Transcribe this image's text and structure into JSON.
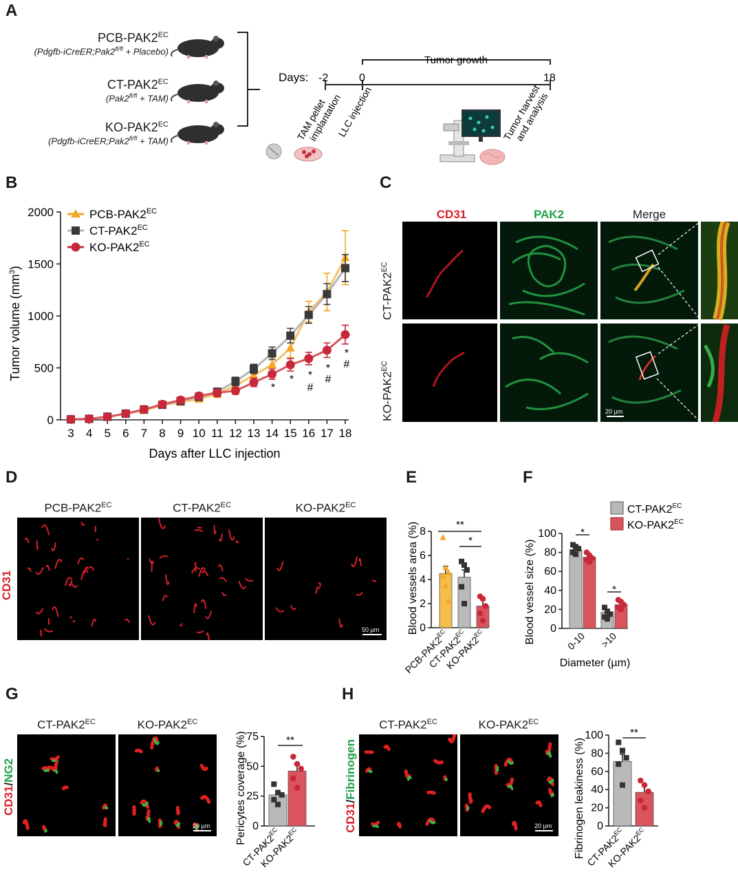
{
  "panels": {
    "A": {
      "letter": "A",
      "groups": [
        {
          "name": "PCB-PAK2",
          "sup": "EC",
          "genotype": "(Pdgfb-iCreER;Pak2",
          "gsup": "fl/fl",
          "gtail": " + Placebo)"
        },
        {
          "name": "CT-PAK2",
          "sup": "EC",
          "genotype": "(Pak2",
          "gsup": "fl/fl",
          "gtail": " + TAM)"
        },
        {
          "name": "KO-PAK2",
          "sup": "EC",
          "genotype": "(Pdgfb-iCreER;Pak2",
          "gsup": "fl/fl",
          "gtail": " + TAM)"
        }
      ],
      "timeline": {
        "days_label": "Days:",
        "ticks": [
          "-2",
          "0",
          "18"
        ],
        "bracket_label": "Tumor growth",
        "events": [
          "TAM pellet",
          "implantation",
          "LLC injection",
          "Tumor harvest",
          "and analysis"
        ]
      }
    },
    "B": {
      "letter": "B",
      "ylabel": "Tumor volume (mm",
      "ylabel_sup": "3",
      "ylabel_tail": ")",
      "xlabel": "Days after LLC injection",
      "legend": [
        {
          "name": "PCB-PAK2",
          "sup": "EC",
          "color": "#f5a623"
        },
        {
          "name": "CT-PAK2",
          "sup": "EC",
          "color": "#3a3a3a"
        },
        {
          "name": "KO-PAK2",
          "sup": "EC",
          "color": "#c8283a"
        }
      ],
      "stars": [
        "*",
        "*",
        "*",
        "*",
        "*"
      ],
      "hashes": [
        "#",
        "#",
        "#"
      ]
    },
    "C": {
      "letter": "C",
      "columns": [
        "CD31",
        "PAK2",
        "Merge"
      ],
      "rows": [
        "CT-PAK2",
        "KO-PAK2"
      ],
      "row_sup": "EC",
      "scale": "20 µm"
    },
    "D": {
      "letter": "D",
      "columns": [
        "PCB-PAK2",
        "CT-PAK2",
        "KO-PAK2"
      ],
      "col_sup": "EC",
      "side_label": "CD31",
      "scale": "50 µm"
    },
    "E": {
      "letter": "E",
      "ylabel": "Blood vessels area (%)",
      "categories": [
        "PCB-PAK2",
        "CT-PAK2",
        "KO-PAK2"
      ],
      "cat_sup": "EC",
      "sig": [
        "**",
        "*"
      ]
    },
    "F": {
      "letter": "F",
      "ylabel": "Blood vessel size (%)",
      "xlabel": "Diameter (µm)",
      "categories": [
        "0-10",
        ">10"
      ],
      "legend": [
        {
          "name": "CT-PAK2",
          "sup": "EC",
          "color": "#b9b9b9"
        },
        {
          "name": "KO-PAK2",
          "sup": "EC",
          "color": "#d9545c"
        }
      ],
      "sig": [
        "*",
        "*"
      ]
    },
    "G": {
      "letter": "G",
      "columns": [
        "CT-PAK2",
        "KO-PAK2"
      ],
      "col_sup": "EC",
      "side_red": "CD31",
      "side_slash": "/",
      "side_green": "NG2",
      "scale": "20 µm",
      "ylabel": "Pericytes coverage (%)",
      "categories": [
        "CT-PAK2",
        "KO-PAK2"
      ],
      "cat_sup": "EC",
      "sig": "**"
    },
    "H": {
      "letter": "H",
      "columns": [
        "CT-PAK2",
        "KO-PAK2"
      ],
      "col_sup": "EC",
      "side_red": "CD31",
      "side_slash": "/",
      "side_green": "Fibrinogen",
      "scale": "20 µm",
      "ylabel": "Fibrinogen leakiness (%)",
      "categories": [
        "CT-PAK2",
        "KO-PAK2"
      ],
      "cat_sup": "EC",
      "sig": "**"
    }
  },
  "chart_data": [
    {
      "id": "B",
      "type": "line",
      "x": [
        3,
        4,
        5,
        6,
        7,
        8,
        9,
        10,
        11,
        12,
        13,
        14,
        15,
        16,
        17,
        18
      ],
      "ylim": [
        0,
        2000
      ],
      "yticks": [
        0,
        500,
        1000,
        1500,
        2000
      ],
      "series": [
        {
          "name": "PCB-PAK2EC",
          "color": "#f5a623",
          "marker": "triangle",
          "values": [
            5,
            10,
            25,
            60,
            90,
            140,
            170,
            200,
            250,
            330,
            430,
            530,
            690,
            1040,
            1230,
            1560
          ],
          "errors": [
            5,
            8,
            10,
            15,
            20,
            25,
            30,
            30,
            35,
            40,
            55,
            70,
            90,
            100,
            180,
            260
          ]
        },
        {
          "name": "CT-PAK2EC",
          "color": "#3a3a3a",
          "marker": "square",
          "values": [
            5,
            10,
            30,
            60,
            100,
            145,
            180,
            220,
            270,
            370,
            490,
            640,
            810,
            1010,
            1210,
            1460
          ],
          "errors": [
            5,
            8,
            10,
            15,
            20,
            25,
            30,
            30,
            35,
            40,
            45,
            60,
            70,
            80,
            100,
            130
          ]
        },
        {
          "name": "KO-PAK2EC",
          "color": "#c8283a",
          "marker": "circle",
          "values": [
            5,
            10,
            30,
            60,
            100,
            150,
            190,
            230,
            260,
            280,
            360,
            440,
            530,
            590,
            670,
            820
          ],
          "errors": [
            5,
            8,
            10,
            15,
            20,
            25,
            30,
            30,
            35,
            35,
            40,
            50,
            60,
            60,
            70,
            90
          ]
        }
      ]
    },
    {
      "id": "E",
      "type": "bar",
      "categories": [
        "PCB-PAK2EC",
        "CT-PAK2EC",
        "KO-PAK2EC"
      ],
      "values": [
        4.5,
        4.2,
        1.8
      ],
      "errors": [
        0.6,
        0.6,
        0.5
      ],
      "colors": [
        "#f5bd49",
        "#b9b9b9",
        "#d9545c"
      ],
      "point_colors": [
        "#f5a623",
        "#333333",
        "#c8283a"
      ],
      "points": [
        [
          7.5,
          5.0,
          4.6,
          4.3,
          3.5,
          2.2
        ],
        [
          5.5,
          5.2,
          4.8,
          3.4,
          2.0
        ],
        [
          2.6,
          2.4,
          1.8,
          1.2,
          0.6
        ]
      ],
      "ylim": [
        0,
        8
      ],
      "yticks": [
        0,
        2,
        4,
        6,
        8
      ]
    },
    {
      "id": "F",
      "type": "bar",
      "categories": [
        "0-10",
        ">10"
      ],
      "series": [
        {
          "name": "CT-PAK2EC",
          "values": [
            83,
            17
          ],
          "errors": [
            3,
            3
          ],
          "color": "#b9b9b9",
          "point_color": "#333333",
          "points": [
            [
              88,
              86,
              84,
              80,
              78
            ],
            [
              22,
              18,
              15,
              12,
              10
            ]
          ]
        },
        {
          "name": "KO-PAK2EC",
          "values": [
            75,
            25
          ],
          "errors": [
            2,
            2
          ],
          "color": "#d9545c",
          "point_color": "#c8283a",
          "points": [
            [
              80,
              77,
              74,
              72,
              70
            ],
            [
              30,
              28,
              25,
              22,
              20
            ]
          ]
        }
      ],
      "ylim": [
        0,
        100
      ],
      "yticks": [
        0,
        20,
        40,
        60,
        80,
        100
      ]
    },
    {
      "id": "G",
      "type": "bar",
      "categories": [
        "CT-PAK2EC",
        "KO-PAK2EC"
      ],
      "values": [
        26,
        46
      ],
      "errors": [
        3,
        5
      ],
      "colors": [
        "#b9b9b9",
        "#d9545c"
      ],
      "point_colors": [
        "#333333",
        "#c8283a"
      ],
      "points": [
        [
          35,
          28,
          26,
          22,
          18
        ],
        [
          58,
          52,
          48,
          40,
          32
        ]
      ],
      "ylim": [
        0,
        75
      ],
      "yticks": [
        0,
        25,
        50,
        75
      ]
    },
    {
      "id": "H",
      "type": "bar",
      "categories": [
        "CT-PAK2EC",
        "KO-PAK2EC"
      ],
      "values": [
        71,
        37
      ],
      "errors": [
        8,
        7
      ],
      "colors": [
        "#b9b9b9",
        "#d9545c"
      ],
      "point_colors": [
        "#333333",
        "#c8283a"
      ],
      "points": [
        [
          92,
          83,
          75,
          68,
          45
        ],
        [
          50,
          45,
          38,
          28,
          20
        ]
      ],
      "ylim": [
        0,
        100
      ],
      "yticks": [
        0,
        20,
        40,
        60,
        80,
        100
      ]
    }
  ]
}
